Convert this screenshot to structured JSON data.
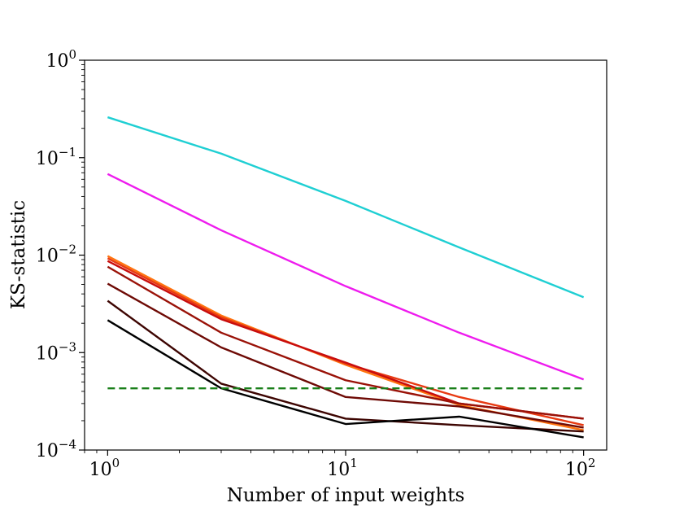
{
  "chart_data": {
    "type": "line",
    "title": "",
    "xlabel": "Number of input weights",
    "ylabel": "KS-statistic",
    "xscale": "log",
    "yscale": "log",
    "xlim": [
      0.8,
      125
    ],
    "ylim": [
      0.0001,
      1
    ],
    "x_ticks": [
      {
        "value": 1,
        "base": "10",
        "exp": "0"
      },
      {
        "value": 10,
        "base": "10",
        "exp": "1"
      },
      {
        "value": 100,
        "base": "10",
        "exp": "2"
      }
    ],
    "y_ticks": [
      {
        "value": 0.0001,
        "base": "10",
        "exp": "−4"
      },
      {
        "value": 0.001,
        "base": "10",
        "exp": "−3"
      },
      {
        "value": 0.01,
        "base": "10",
        "exp": "−2"
      },
      {
        "value": 0.1,
        "base": "10",
        "exp": "−1"
      },
      {
        "value": 1,
        "base": "10",
        "exp": "0"
      }
    ],
    "grid": false,
    "legend": "none",
    "x": [
      1,
      3,
      10,
      30,
      100
    ],
    "series": [
      {
        "name": "cyan",
        "color": "#1fcfd3",
        "values": [
          0.26,
          0.11,
          0.036,
          0.012,
          0.0037
        ]
      },
      {
        "name": "magenta",
        "color": "#ee1cee",
        "values": [
          0.068,
          0.018,
          0.0048,
          0.0016,
          0.00053
        ]
      },
      {
        "name": "orange",
        "color": "#ff7410",
        "values": [
          0.0098,
          0.0024,
          0.00075,
          0.00029,
          0.00016
        ]
      },
      {
        "name": "red-orange",
        "color": "#e83a12",
        "values": [
          0.0093,
          0.0023,
          0.00077,
          0.00035,
          0.00018
        ]
      },
      {
        "name": "red",
        "color": "#c80d0d",
        "values": [
          0.0087,
          0.0022,
          0.00079,
          0.0003,
          0.00021
        ]
      },
      {
        "name": "dark-red",
        "color": "#9a1208",
        "values": [
          0.0076,
          0.0016,
          0.00052,
          0.0003,
          0.00021
        ]
      },
      {
        "name": "maroon",
        "color": "#6e0a05",
        "values": [
          0.0051,
          0.00113,
          0.00035,
          0.00028,
          0.00017
        ]
      },
      {
        "name": "dark-maroon",
        "color": "#3d0502",
        "values": [
          0.0034,
          0.00048,
          0.00021,
          0.00018,
          0.000155
        ]
      },
      {
        "name": "black",
        "color": "#000000",
        "values": [
          0.00215,
          0.00043,
          0.000185,
          0.00022,
          0.000135
        ]
      }
    ],
    "reference_line": {
      "name": "baseline",
      "color": "#1a7f1a",
      "style": "dashed",
      "value": 0.00043,
      "x_range": [
        1,
        100
      ]
    }
  }
}
